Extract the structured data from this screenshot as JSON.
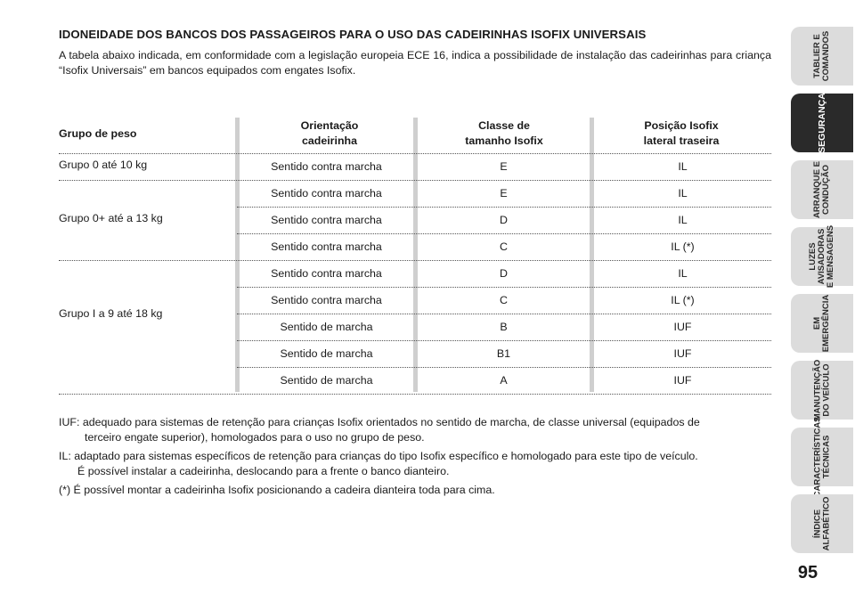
{
  "title": "IDONEIDADE DOS BANCOS DOS PASSAGEIROS PARA O USO DAS CADEIRINHAS ISOFIX UNIVERSAIS",
  "intro": "A tabela abaixo indicada, em conformidade com a legislação europeia ECE 16, indica a possibilidade de instalação das cadeirinhas para criança “Isofix Universais” em bancos equipados com engates Isofix.",
  "table": {
    "headers": {
      "group": "Grupo de peso",
      "orientation_1": "Orientação",
      "orientation_2": "cadeirinha",
      "size_1": "Classe de",
      "size_2": "tamanho Isofix",
      "position_1": "Posição Isofix",
      "position_2": "lateral traseira"
    },
    "groups": [
      {
        "label": "Grupo 0 até 10 kg"
      },
      {
        "label": "Grupo 0+ até a 13 kg"
      },
      {
        "label": "Grupo I a 9 até 18 kg"
      }
    ],
    "rows": [
      {
        "orientation": "Sentido contra marcha",
        "size": "E",
        "position": "IL"
      },
      {
        "orientation": "Sentido contra marcha",
        "size": "E",
        "position": "IL"
      },
      {
        "orientation": "Sentido contra marcha",
        "size": "D",
        "position": "IL"
      },
      {
        "orientation": "Sentido contra marcha",
        "size": "C",
        "position": "IL (*)"
      },
      {
        "orientation": "Sentido contra marcha",
        "size": "D",
        "position": "IL"
      },
      {
        "orientation": "Sentido contra marcha",
        "size": "C",
        "position": "IL (*)"
      },
      {
        "orientation": "Sentido de marcha",
        "size": "B",
        "position": "IUF"
      },
      {
        "orientation": "Sentido de marcha",
        "size": "B1",
        "position": "IUF"
      },
      {
        "orientation": "Sentido de marcha",
        "size": "A",
        "position": "IUF"
      }
    ]
  },
  "notes": {
    "iuf_1": "IUF: adequado para sistemas de retenção para crianças Isofix orientados no sentido de marcha, de classe universal (equipados de",
    "iuf_2": "terceiro engate superior), homologados para o uso no grupo de peso.",
    "il_1": "IL: adaptado para sistemas específicos de retenção para crianças do tipo Isofix específico e homologado para este tipo de veículo.",
    "il_2": "É possível instalar a cadeirinha, deslocando para a frente o banco dianteiro.",
    "star": "(*) É possível montar a cadeirinha Isofix posicionando a cadeira dianteira toda para cima."
  },
  "sidebar": {
    "tabs": [
      {
        "label": "TABLIER E\nCOMANDOS",
        "active": false
      },
      {
        "label": "SEGURANÇA",
        "active": true
      },
      {
        "label": "ARRANQUE E\nCONDUÇÃO",
        "active": false
      },
      {
        "label": "LUZES\nAVISADORAS\nE MENSAGENS",
        "active": false
      },
      {
        "label": "EM\nEMERGÊNCIA",
        "active": false
      },
      {
        "label": "MANUTENÇÃO\nDO VEÍCULO",
        "active": false
      },
      {
        "label": "CARACTERÍSTICAS\nTÉCNICAS",
        "active": false
      },
      {
        "label": "ÍNDICE\nALFABÉTICO",
        "active": false
      }
    ]
  },
  "page_number": "95"
}
